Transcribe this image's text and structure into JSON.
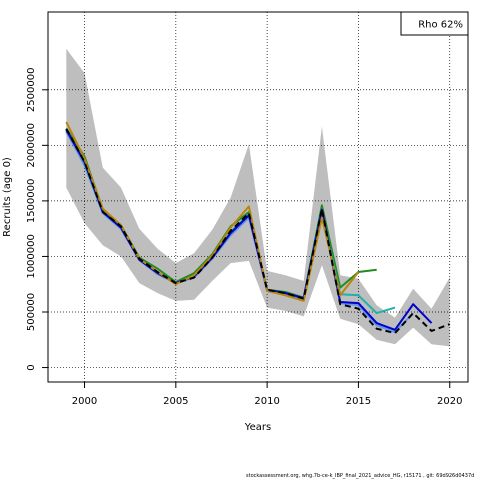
{
  "chart_data": {
    "type": "line",
    "title": "",
    "xlabel": "Years",
    "ylabel": "Recruits (age 0)",
    "annotation": "Rho 62%",
    "footer": "stockassessment.org, whg.7b-ce-k_IBP_final_2021_advice_HG, r15171 , git: 69d926d0437d",
    "xlim": [
      1998,
      2021
    ],
    "ylim": [
      -130000,
      3200000
    ],
    "x_ticks": [
      2000,
      2005,
      2010,
      2015,
      2020
    ],
    "y_ticks": [
      0,
      500000,
      1000000,
      1500000,
      2000000,
      2500000
    ],
    "grid": true,
    "band": {
      "color": "#bebebe",
      "x": [
        1999,
        2000,
        2001,
        2002,
        2003,
        2004,
        2005,
        2006,
        2007,
        2008,
        2009,
        2010,
        2011,
        2012,
        2013,
        2014,
        2015,
        2016,
        2017,
        2018,
        2019,
        2020
      ],
      "upper": [
        2870000,
        2650000,
        1800000,
        1620000,
        1250000,
        1070000,
        940000,
        1030000,
        1240000,
        1530000,
        2010000,
        870000,
        830000,
        780000,
        2170000,
        830000,
        800000,
        560000,
        450000,
        710000,
        530000,
        810000
      ],
      "lower": [
        1620000,
        1300000,
        1100000,
        1000000,
        760000,
        670000,
        600000,
        610000,
        780000,
        940000,
        960000,
        540000,
        510000,
        460000,
        920000,
        440000,
        390000,
        250000,
        210000,
        360000,
        210000,
        190000
      ]
    },
    "series": [
      {
        "color": "#228b22",
        "dash": false,
        "x": [
          1999,
          2000,
          2001,
          2002,
          2003,
          2004,
          2005,
          2006,
          2007,
          2008,
          2009,
          2010,
          2011,
          2012,
          2013,
          2014,
          2015,
          2016
        ],
        "values": [
          2150000,
          1900000,
          1420000,
          1280000,
          990000,
          890000,
          770000,
          850000,
          1020000,
          1270000,
          1400000,
          700000,
          680000,
          630000,
          1460000,
          720000,
          860000,
          880000
        ]
      },
      {
        "color": "#20b2aa",
        "dash": false,
        "x": [
          1999,
          2000,
          2001,
          2002,
          2003,
          2004,
          2005,
          2006,
          2007,
          2008,
          2009,
          2010,
          2011,
          2012,
          2013,
          2014,
          2015,
          2016,
          2017
        ],
        "values": [
          2130000,
          1820000,
          1390000,
          1250000,
          970000,
          850000,
          760000,
          820000,
          990000,
          1220000,
          1380000,
          690000,
          660000,
          620000,
          1400000,
          660000,
          650000,
          490000,
          540000
        ]
      },
      {
        "color": "#6495ed",
        "dash": false,
        "x": [
          1999,
          2000,
          2001,
          2002,
          2003,
          2004,
          2005,
          2006,
          2007,
          2008,
          2009,
          2010,
          2011,
          2012,
          2013,
          2014,
          2015,
          2016,
          2017,
          2018
        ],
        "values": [
          2120000,
          1830000,
          1390000,
          1250000,
          970000,
          840000,
          760000,
          810000,
          980000,
          1190000,
          1350000,
          690000,
          660000,
          620000,
          1410000,
          580000,
          560000,
          380000,
          320000,
          490000
        ]
      },
      {
        "color": "#0000cd",
        "dash": false,
        "x": [
          1999,
          2000,
          2001,
          2002,
          2003,
          2004,
          2005,
          2006,
          2007,
          2008,
          2009,
          2010,
          2011,
          2012,
          2013,
          2014,
          2015,
          2016,
          2017,
          2018,
          2019
        ],
        "values": [
          2140000,
          1850000,
          1400000,
          1260000,
          970000,
          850000,
          760000,
          820000,
          990000,
          1210000,
          1370000,
          700000,
          670000,
          625000,
          1420000,
          590000,
          580000,
          400000,
          340000,
          570000,
          400000
        ]
      },
      {
        "color": "#b8860b",
        "dash": false,
        "x": [
          1999,
          2000,
          2001,
          2002,
          2003,
          2004,
          2005,
          2006,
          2007,
          2008,
          2009,
          2010,
          2011,
          2012,
          2013,
          2014,
          2015
        ],
        "values": [
          2210000,
          1880000,
          1430000,
          1280000,
          980000,
          860000,
          750000,
          830000,
          1010000,
          1260000,
          1450000,
          690000,
          650000,
          600000,
          1350000,
          650000,
          860000
        ]
      },
      {
        "color": "#000000",
        "dash": true,
        "x": [
          1999,
          2000,
          2001,
          2002,
          2003,
          2004,
          2005,
          2006,
          2007,
          2008,
          2009,
          2010,
          2011,
          2012,
          2013,
          2014,
          2015,
          2016,
          2017,
          2018,
          2019,
          2020
        ],
        "values": [
          2150000,
          1850000,
          1400000,
          1270000,
          980000,
          860000,
          760000,
          810000,
          990000,
          1230000,
          1390000,
          700000,
          670000,
          620000,
          1430000,
          570000,
          530000,
          350000,
          310000,
          490000,
          330000,
          390000
        ]
      }
    ]
  }
}
